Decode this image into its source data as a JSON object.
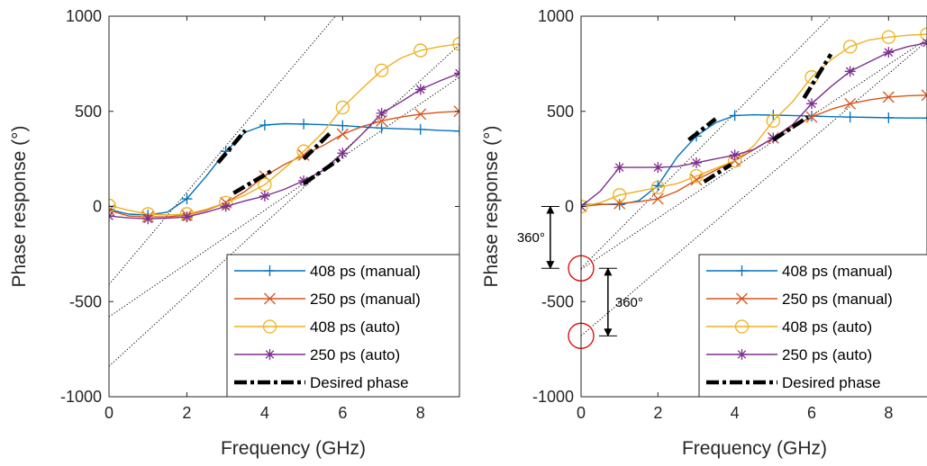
{
  "chart_data": [
    {
      "type": "line",
      "xlabel": "Frequency (GHz)",
      "ylabel": "Phase response (°)",
      "xlim": [
        0,
        9
      ],
      "ylim": [
        -1000,
        1000
      ],
      "xticks": [
        "0",
        "2",
        "4",
        "6",
        "8"
      ],
      "yticks": [
        "-1000",
        "-500",
        "0",
        "500",
        "1000"
      ],
      "legend": {
        "position": "bottom-right",
        "entries": [
          "408 ps (manual)",
          "250 ps (manual)",
          "408 ps (auto)",
          "250 ps (auto)",
          "Desired phase"
        ]
      },
      "series": [
        {
          "name": "408 ps (manual)",
          "color": "#0072BD",
          "marker": "plus",
          "x": [
            0,
            0.5,
            1,
            1.5,
            2,
            2.5,
            3,
            3.5,
            4,
            4.5,
            5,
            5.5,
            6,
            6.5,
            7,
            7.5,
            8,
            8.5,
            9
          ],
          "y": [
            -15,
            -40,
            -45,
            -30,
            40,
            160,
            290,
            390,
            428,
            435,
            433,
            430,
            425,
            418,
            412,
            408,
            405,
            400,
            396
          ]
        },
        {
          "name": "250 ps (manual)",
          "color": "#D95319",
          "marker": "x",
          "x": [
            0,
            0.5,
            1,
            1.5,
            2,
            2.5,
            3,
            3.5,
            4,
            4.5,
            5,
            5.5,
            6,
            6.5,
            7,
            7.5,
            8,
            8.5,
            9
          ],
          "y": [
            -20,
            -50,
            -55,
            -55,
            -45,
            -20,
            20,
            80,
            160,
            220,
            270,
            320,
            380,
            420,
            450,
            470,
            485,
            495,
            500
          ]
        },
        {
          "name": "408 ps (auto)",
          "color": "#EDB120",
          "marker": "circle",
          "x": [
            0,
            0.5,
            1,
            1.5,
            2,
            2.5,
            3,
            3.5,
            4,
            4.5,
            5,
            5.5,
            6,
            6.5,
            7,
            7.5,
            8,
            8.5,
            9
          ],
          "y": [
            5,
            -20,
            -40,
            -45,
            -40,
            -15,
            20,
            60,
            115,
            200,
            290,
            390,
            520,
            620,
            715,
            780,
            820,
            840,
            855
          ]
        },
        {
          "name": "250 ps (auto)",
          "color": "#7E2F8E",
          "marker": "asterisk",
          "x": [
            0,
            0.5,
            1,
            1.5,
            2,
            2.5,
            3,
            3.5,
            4,
            4.5,
            5,
            5.5,
            6,
            6.5,
            7,
            7.5,
            8,
            8.5,
            9
          ],
          "y": [
            -50,
            -60,
            -65,
            -62,
            -55,
            -30,
            0,
            30,
            55,
            90,
            135,
            190,
            280,
            380,
            490,
            550,
            615,
            660,
            700
          ]
        }
      ],
      "desired_phase": [
        {
          "x": [
            2.8,
            3.5
          ],
          "y": [
            230,
            400
          ]
        },
        {
          "x": [
            3.2,
            4.2
          ],
          "y": [
            70,
            190
          ]
        },
        {
          "x": [
            5.0,
            5.7
          ],
          "y": [
            250,
            390
          ]
        },
        {
          "x": [
            5.0,
            6.0
          ],
          "y": [
            120,
            260
          ]
        }
      ],
      "extrapolations": [
        {
          "x": [
            0,
            6.0
          ],
          "y": [
            -410,
            1045
          ]
        },
        {
          "x": [
            0,
            9
          ],
          "y": [
            -580,
            680
          ]
        },
        {
          "x": [
            0,
            9
          ],
          "y": [
            -840,
            850
          ]
        }
      ]
    },
    {
      "type": "line",
      "xlabel": "Frequency (GHz)",
      "ylabel": "Phase response (°)",
      "xlim": [
        0,
        9
      ],
      "ylim": [
        -1000,
        1000
      ],
      "xticks": [
        "0",
        "2",
        "4",
        "6",
        "8"
      ],
      "yticks": [
        "-1000",
        "-500",
        "0",
        "500",
        "1000"
      ],
      "legend": {
        "position": "bottom-right",
        "entries": [
          "408 ps (manual)",
          "250 ps (manual)",
          "408 ps (auto)",
          "250 ps (auto)",
          "Desired phase"
        ]
      },
      "series": [
        {
          "name": "408 ps (manual)",
          "color": "#0072BD",
          "marker": "plus",
          "x": [
            0,
            0.5,
            1,
            1.5,
            2,
            2.5,
            3,
            3.5,
            4,
            4.5,
            5,
            5.5,
            6,
            6.5,
            7,
            7.5,
            8,
            8.5,
            9
          ],
          "y": [
            10,
            12,
            10,
            30,
            110,
            260,
            370,
            440,
            478,
            482,
            480,
            478,
            475,
            472,
            470,
            468,
            466,
            465,
            465
          ]
        },
        {
          "name": "250 ps (manual)",
          "color": "#D95319",
          "marker": "x",
          "x": [
            0,
            0.5,
            1,
            1.5,
            2,
            2.5,
            3,
            3.5,
            4,
            4.5,
            5,
            5.5,
            6,
            6.5,
            7,
            7.5,
            8,
            8.5,
            9
          ],
          "y": [
            0,
            10,
            15,
            25,
            40,
            80,
            140,
            190,
            240,
            300,
            360,
            420,
            470,
            510,
            540,
            560,
            575,
            582,
            585
          ]
        },
        {
          "name": "408 ps (auto)",
          "color": "#EDB120",
          "marker": "circle",
          "x": [
            0,
            0.5,
            1,
            1.5,
            2,
            2.5,
            3,
            3.5,
            4,
            4.5,
            5,
            5.5,
            6,
            6.5,
            7,
            7.5,
            8,
            8.5,
            9
          ],
          "y": [
            0,
            20,
            60,
            80,
            100,
            120,
            160,
            200,
            240,
            320,
            450,
            550,
            680,
            770,
            840,
            875,
            890,
            900,
            905
          ]
        },
        {
          "name": "250 ps (auto)",
          "color": "#7E2F8E",
          "marker": "asterisk",
          "x": [
            0,
            0.5,
            1,
            1.5,
            2,
            2.5,
            3,
            3.5,
            4,
            4.5,
            5,
            5.5,
            6,
            6.5,
            7,
            7.5,
            8,
            8.5,
            9
          ],
          "y": [
            0,
            80,
            205,
            205,
            205,
            210,
            230,
            250,
            270,
            300,
            360,
            430,
            540,
            630,
            710,
            760,
            810,
            840,
            860
          ]
        }
      ],
      "desired_phase": [
        {
          "x": [
            2.8,
            3.5
          ],
          "y": [
            350,
            460
          ]
        },
        {
          "x": [
            3.2,
            3.9
          ],
          "y": [
            130,
            220
          ]
        },
        {
          "x": [
            5.0,
            5.9
          ],
          "y": [
            350,
            470
          ]
        },
        {
          "x": [
            5.8,
            6.5
          ],
          "y": [
            570,
            800
          ]
        }
      ],
      "extrapolations": [
        {
          "x": [
            0,
            6.5
          ],
          "y": [
            -325,
            1000
          ]
        },
        {
          "x": [
            0,
            9
          ],
          "y": [
            -330,
            880
          ]
        },
        {
          "x": [
            0,
            9
          ],
          "y": [
            -680,
            870
          ]
        }
      ],
      "annotations": [
        {
          "text": "360°",
          "arrow_x": -0.8,
          "y_range": [
            -325,
            0
          ]
        },
        {
          "text": "360°",
          "arrow_x": 0.7,
          "y_range": [
            -680,
            -325
          ]
        }
      ],
      "highlight_circles": [
        {
          "x": 0,
          "y": -325
        },
        {
          "x": 0,
          "y": -680
        }
      ]
    }
  ]
}
